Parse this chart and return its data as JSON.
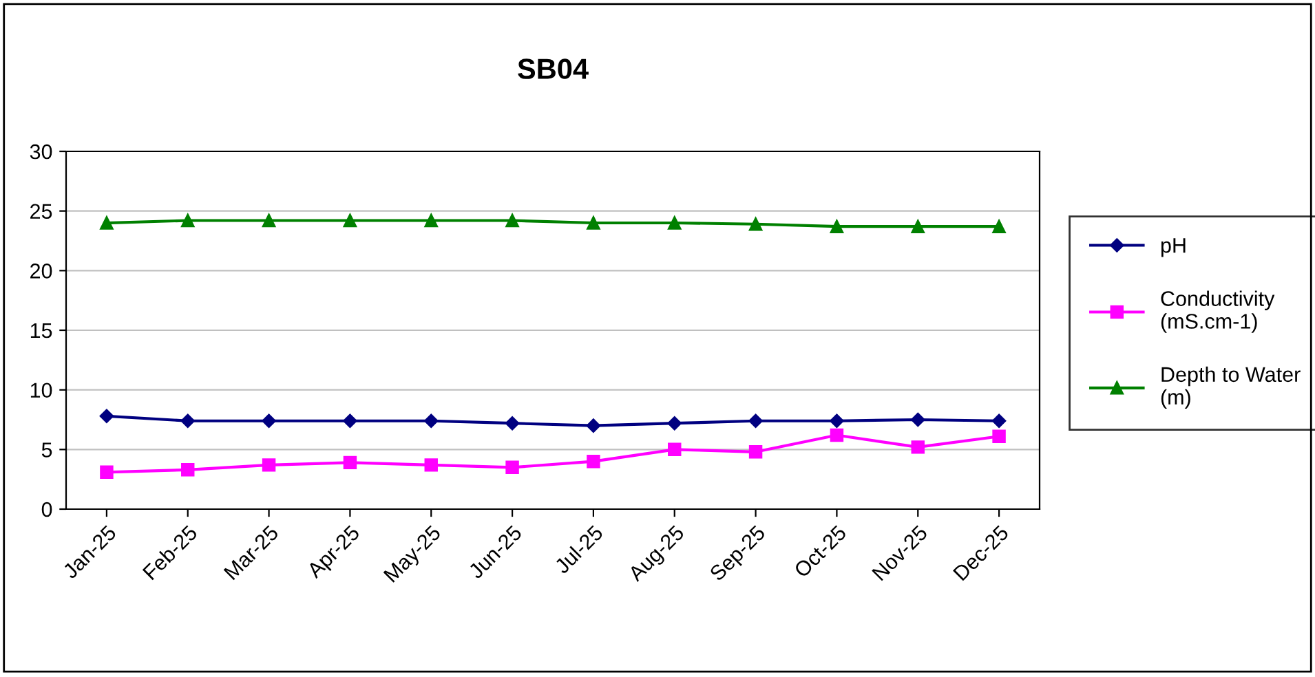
{
  "chart_data": {
    "type": "line",
    "title": "SB04",
    "categories": [
      "Jan-25",
      "Feb-25",
      "Mar-25",
      "Apr-25",
      "May-25",
      "Jun-25",
      "Jul-25",
      "Aug-25",
      "Sep-25",
      "Oct-25",
      "Nov-25",
      "Dec-25"
    ],
    "series": [
      {
        "name": "pH",
        "color": "#000080",
        "marker": "diamond",
        "values": [
          7.8,
          7.4,
          7.4,
          7.4,
          7.4,
          7.2,
          7.0,
          7.2,
          7.4,
          7.4,
          7.5,
          7.4
        ]
      },
      {
        "name": "Conductivity (mS.cm-1)",
        "color": "#ff00ff",
        "marker": "square",
        "values": [
          3.1,
          3.3,
          3.7,
          3.9,
          3.7,
          3.5,
          4.0,
          5.0,
          4.8,
          6.2,
          5.2,
          6.1
        ]
      },
      {
        "name": "Depth to Water (m)",
        "color": "#008000",
        "marker": "triangle",
        "values": [
          24.0,
          24.2,
          24.2,
          24.2,
          24.2,
          24.2,
          24.0,
          24.0,
          23.9,
          23.7,
          23.7,
          23.7
        ]
      }
    ],
    "ylim": [
      0,
      30
    ],
    "yticks": [
      0,
      5,
      10,
      15,
      20,
      25,
      30
    ],
    "grid": "y",
    "legend": "right",
    "line_style": "solid"
  }
}
